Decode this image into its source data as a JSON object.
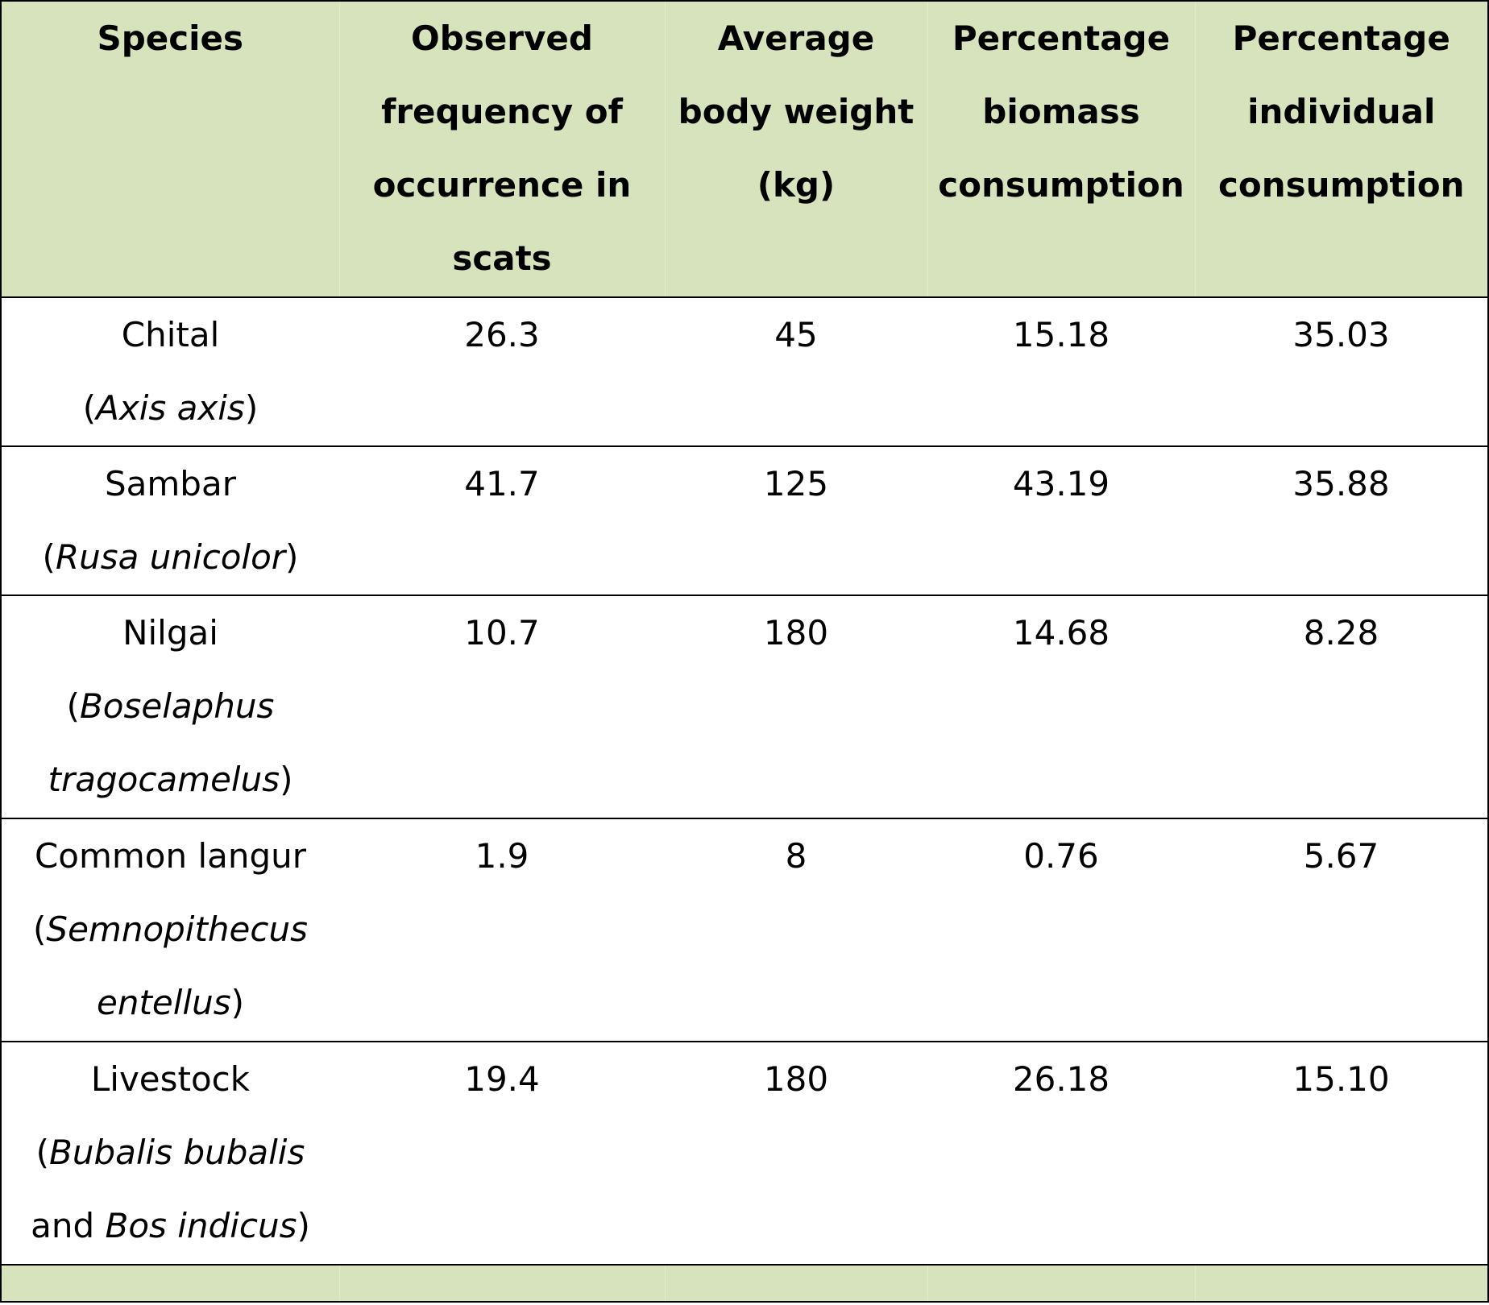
{
  "table": {
    "headers": [
      "Species",
      "Observed frequency of occurrence in scats",
      "Average body weight (kg)",
      "Percentage biomass consumption",
      "Percentage individual consumption"
    ],
    "rows": [
      {
        "common": "Chital",
        "sci_pre": "(",
        "sci_italic": "Axis axis",
        "sci_mid": "",
        "sci_italic2": "",
        "sci_post": ")",
        "frequency": "26.3",
        "weight": "45",
        "biomass": "15.18",
        "individual": "35.03"
      },
      {
        "common": "Sambar",
        "sci_pre": "(",
        "sci_italic": "Rusa unicolor",
        "sci_mid": "",
        "sci_italic2": "",
        "sci_post": ")",
        "frequency": "41.7",
        "weight": "125",
        "biomass": "43.19",
        "individual": "35.88"
      },
      {
        "common": "Nilgai",
        "sci_pre": "(",
        "sci_italic": "Boselaphus tragocamelus",
        "sci_mid": "",
        "sci_italic2": "",
        "sci_post": ")",
        "frequency": "10.7",
        "weight": "180",
        "biomass": "14.68",
        "individual": "8.28"
      },
      {
        "common": "Common langur",
        "sci_pre": "(",
        "sci_italic": "Semnopithecus entellus",
        "sci_mid": "",
        "sci_italic2": "",
        "sci_post": ")",
        "frequency": "1.9",
        "weight": "8",
        "biomass": "0.76",
        "individual": "5.67"
      },
      {
        "common": "Livestock",
        "sci_pre": "(",
        "sci_italic": "Bubalis bubalis",
        "sci_mid": " and ",
        "sci_italic2": "Bos indicus",
        "sci_post": ")",
        "frequency": "19.4",
        "weight": "180",
        "biomass": "26.18",
        "individual": "15.10"
      }
    ]
  }
}
